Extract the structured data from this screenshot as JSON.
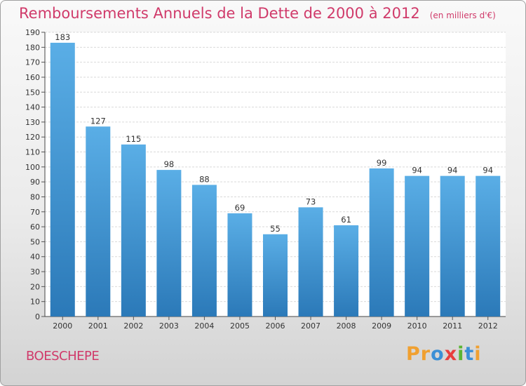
{
  "chart_data": {
    "type": "bar",
    "title": "Remboursements Annuels de la Dette de 2000 à 2012",
    "subtitle": "(en milliers d'€)",
    "categories": [
      "2000",
      "2001",
      "2002",
      "2003",
      "2004",
      "2005",
      "2006",
      "2007",
      "2008",
      "2009",
      "2010",
      "2011",
      "2012"
    ],
    "values": [
      183,
      127,
      115,
      98,
      88,
      69,
      55,
      73,
      61,
      99,
      94,
      94,
      94
    ],
    "ylim": [
      0,
      190
    ],
    "ytick_step": 10,
    "grid": true,
    "xlabel": "",
    "ylabel": "",
    "bar_color": "#5aaee6",
    "bar_color_dark": "#2b79b8"
  },
  "footer": {
    "commune": "BOESCHEPE",
    "logo_letters": [
      "P",
      "r",
      "o",
      "x",
      "i",
      "t",
      "i"
    ],
    "logo_colors": [
      "#f0a030",
      "#f0a030",
      "#3a8fd6",
      "#e83e3e",
      "#5bb533",
      "#3a8fd6",
      "#f0a030"
    ]
  }
}
